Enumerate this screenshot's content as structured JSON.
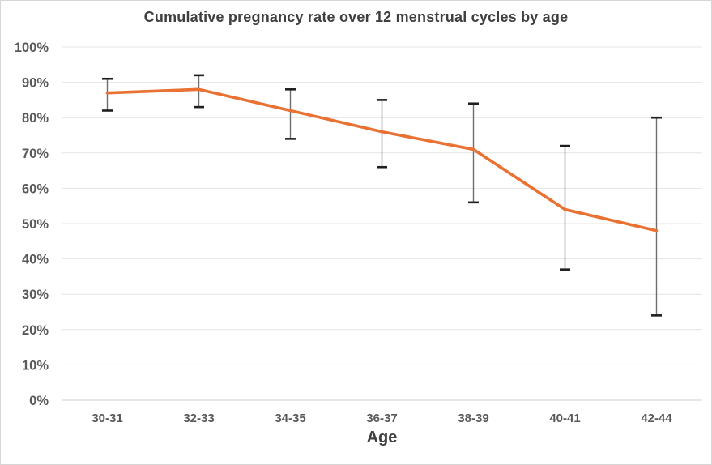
{
  "chart_data": {
    "type": "line",
    "title": "Cumulative pregnancy rate over 12 menstrual cycles by age",
    "xlabel": "Age",
    "ylabel": "",
    "categories": [
      "30-31",
      "32-33",
      "34-35",
      "36-37",
      "38-39",
      "40-41",
      "42-44"
    ],
    "values": [
      87,
      88,
      82,
      76,
      71,
      54,
      48
    ],
    "error_low": [
      82,
      83,
      74,
      66,
      56,
      37,
      24
    ],
    "error_high": [
      91,
      92,
      88,
      85,
      84,
      72,
      80
    ],
    "ylim": [
      0,
      100
    ],
    "ytick_step": 10,
    "ytick_suffix": "%",
    "grid": true,
    "legend": false,
    "colors": {
      "line": "#E97132",
      "error_line": "#6e6e6e",
      "error_cap": "#1f1f1f",
      "gridline": "#e4e4e4",
      "axis_line": "#cfcfcf",
      "tick_text": "#595959",
      "title_text": "#3f3f3f"
    }
  }
}
